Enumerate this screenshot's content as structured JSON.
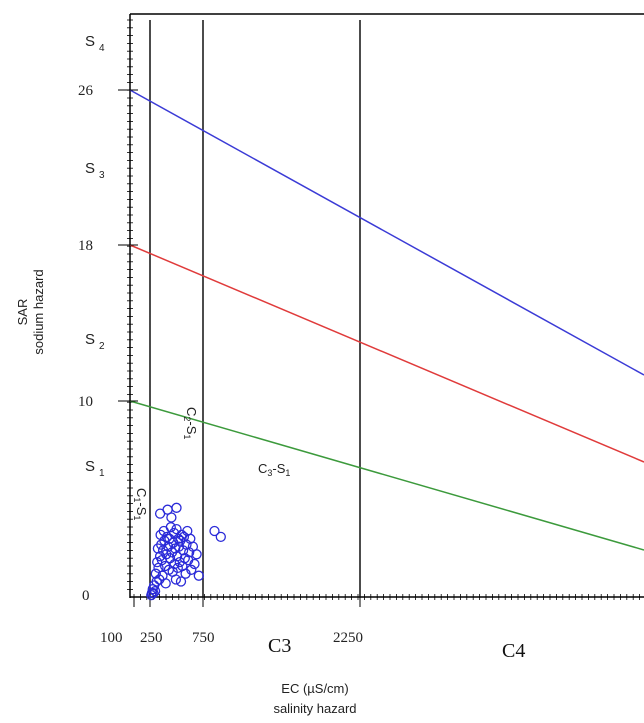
{
  "chart_data": {
    "type": "scatter",
    "title": "",
    "xlabel": "EC (µS/cm)",
    "xlabel_sub": "salinity hazard",
    "ylabel": "SAR",
    "ylabel_sub": "sodium hazard",
    "x_ticks": [
      "100",
      "250",
      "750",
      "2250"
    ],
    "y_ticks": [
      "0",
      "10",
      "18",
      "26"
    ],
    "sodium_classes": [
      {
        "label": "S",
        "sub": "4"
      },
      {
        "label": "S",
        "sub": "3"
      },
      {
        "label": "S",
        "sub": "2"
      },
      {
        "label": "S",
        "sub": "1"
      }
    ],
    "salinity_classes": [
      "C3",
      "C4"
    ],
    "zones": [
      {
        "label": "C",
        "sub1": "1",
        "mid": "-S",
        "sub2": "1"
      },
      {
        "label": "C",
        "sub1": "2",
        "mid": "-S",
        "sub2": "1"
      },
      {
        "label": "C",
        "sub1": "3",
        "mid": "-S",
        "sub2": "1"
      }
    ],
    "class_boundaries_ec": [
      250,
      750,
      2250
    ],
    "lines": [
      {
        "color": "#3b3bd6",
        "sar_at_100": 26
      },
      {
        "color": "#e03b3b",
        "sar_at_100": 18
      },
      {
        "color": "#3c9a3c",
        "sar_at_100": 10
      }
    ],
    "points": [
      [
        262,
        0.1
      ],
      [
        268,
        0.2
      ],
      [
        275,
        0.4
      ],
      [
        282,
        0.2
      ],
      [
        290,
        0.6
      ],
      [
        298,
        0.3
      ],
      [
        305,
        1.2
      ],
      [
        312,
        0.8
      ],
      [
        318,
        1.8
      ],
      [
        325,
        2.5
      ],
      [
        330,
        1.5
      ],
      [
        338,
        0.9
      ],
      [
        345,
        2.1
      ],
      [
        350,
        3.2
      ],
      [
        356,
        2.7
      ],
      [
        362,
        1.9
      ],
      [
        368,
        1.1
      ],
      [
        374,
        2.4
      ],
      [
        380,
        3.4
      ],
      [
        386,
        2.9
      ],
      [
        392,
        1.6
      ],
      [
        398,
        0.7
      ],
      [
        404,
        2.2
      ],
      [
        410,
        3.1
      ],
      [
        416,
        4.5
      ],
      [
        422,
        2.6
      ],
      [
        428,
        1.4
      ],
      [
        434,
        3.0
      ],
      [
        440,
        2.0
      ],
      [
        446,
        3.6
      ],
      [
        452,
        4.1
      ],
      [
        458,
        2.3
      ],
      [
        464,
        1.3
      ],
      [
        470,
        2.8
      ],
      [
        476,
        3.3
      ],
      [
        482,
        1.7
      ],
      [
        488,
        2.5
      ],
      [
        494,
        0.9
      ],
      [
        500,
        3.5
      ],
      [
        506,
        2.1
      ],
      [
        512,
        1.5
      ],
      [
        518,
        3.0
      ],
      [
        524,
        2.6
      ],
      [
        530,
        1.8
      ],
      [
        536,
        2.9
      ],
      [
        542,
        0.8
      ],
      [
        548,
        3.2
      ],
      [
        556,
        1.6
      ],
      [
        562,
        2.4
      ],
      [
        570,
        3.1
      ],
      [
        578,
        2.0
      ],
      [
        586,
        1.2
      ],
      [
        594,
        2.7
      ],
      [
        602,
        3.4
      ],
      [
        610,
        1.9
      ],
      [
        620,
        2.3
      ],
      [
        630,
        3.0
      ],
      [
        640,
        1.4
      ],
      [
        655,
        2.6
      ],
      [
        670,
        1.7
      ],
      [
        690,
        2.2
      ],
      [
        710,
        1.1
      ],
      [
        345,
        4.3
      ],
      [
        500,
        4.6
      ],
      [
        860,
        3.4
      ],
      [
        920,
        3.1
      ]
    ],
    "xlim": [
      0,
      3950
    ],
    "ylim": [
      0,
      30
    ]
  }
}
